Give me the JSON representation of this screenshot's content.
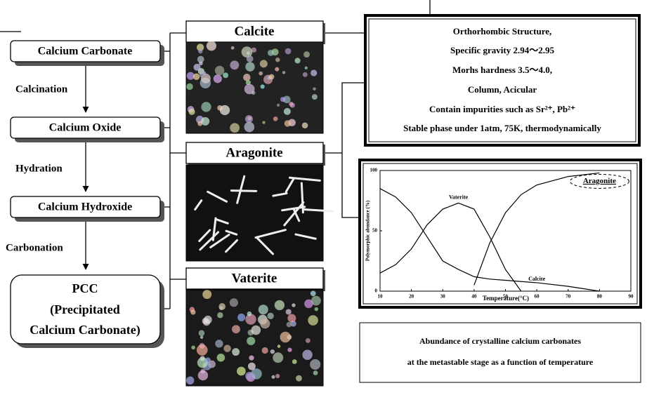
{
  "flow": {
    "steps": [
      "Calcium Carbonate",
      "Calcium Oxide",
      "Calcium Hydroxide"
    ],
    "final": [
      "PCC",
      "(Precipitated",
      "Calcium Carbonate)"
    ],
    "processes": [
      "Calcination",
      "Hydration",
      "Carbonation"
    ]
  },
  "polymorphs": [
    "Calcite",
    "Aragonite",
    "Vaterite"
  ],
  "properties": [
    "Orthorhombic Structure,",
    "Specific gravity  2.94～2.95",
    "Morhs hardness  3.5～4.0,",
    "Column, Acicular",
    "Contain impurities such as Sr²⁺, Pb²⁺",
    "Stable phase under 1atm, 75K, thermodynamically"
  ],
  "chart_data": {
    "type": "line",
    "x_label": "Temperature(°C)",
    "y_label": "Polymorphic abundance (%)",
    "x": [
      10,
      15,
      20,
      25,
      30,
      35,
      40,
      45,
      50,
      55,
      60,
      70,
      80
    ],
    "series": [
      {
        "name": "Vaterite",
        "color": "#000000",
        "values": [
          15,
          22,
          35,
          55,
          68,
          73,
          68,
          45,
          18,
          0,
          null,
          null,
          null
        ]
      },
      {
        "name": "Aragonite",
        "color": "#000000",
        "values": [
          null,
          null,
          null,
          null,
          null,
          null,
          5,
          40,
          65,
          80,
          88,
          95,
          98
        ]
      },
      {
        "name": "Calcite",
        "color": "#000000",
        "values": [
          85,
          78,
          65,
          45,
          25,
          18,
          12,
          10,
          9,
          8,
          7,
          4,
          0
        ]
      }
    ],
    "xlim": [
      10,
      90
    ],
    "xticks": [
      10,
      20,
      30,
      40,
      50,
      60,
      70,
      80,
      90
    ],
    "ylim": [
      0,
      100
    ],
    "yticks": [
      0,
      50,
      100
    ]
  },
  "caption": [
    "Abundance of crystalline calcium carbonates",
    "at the metastable stage as a function of temperature"
  ]
}
